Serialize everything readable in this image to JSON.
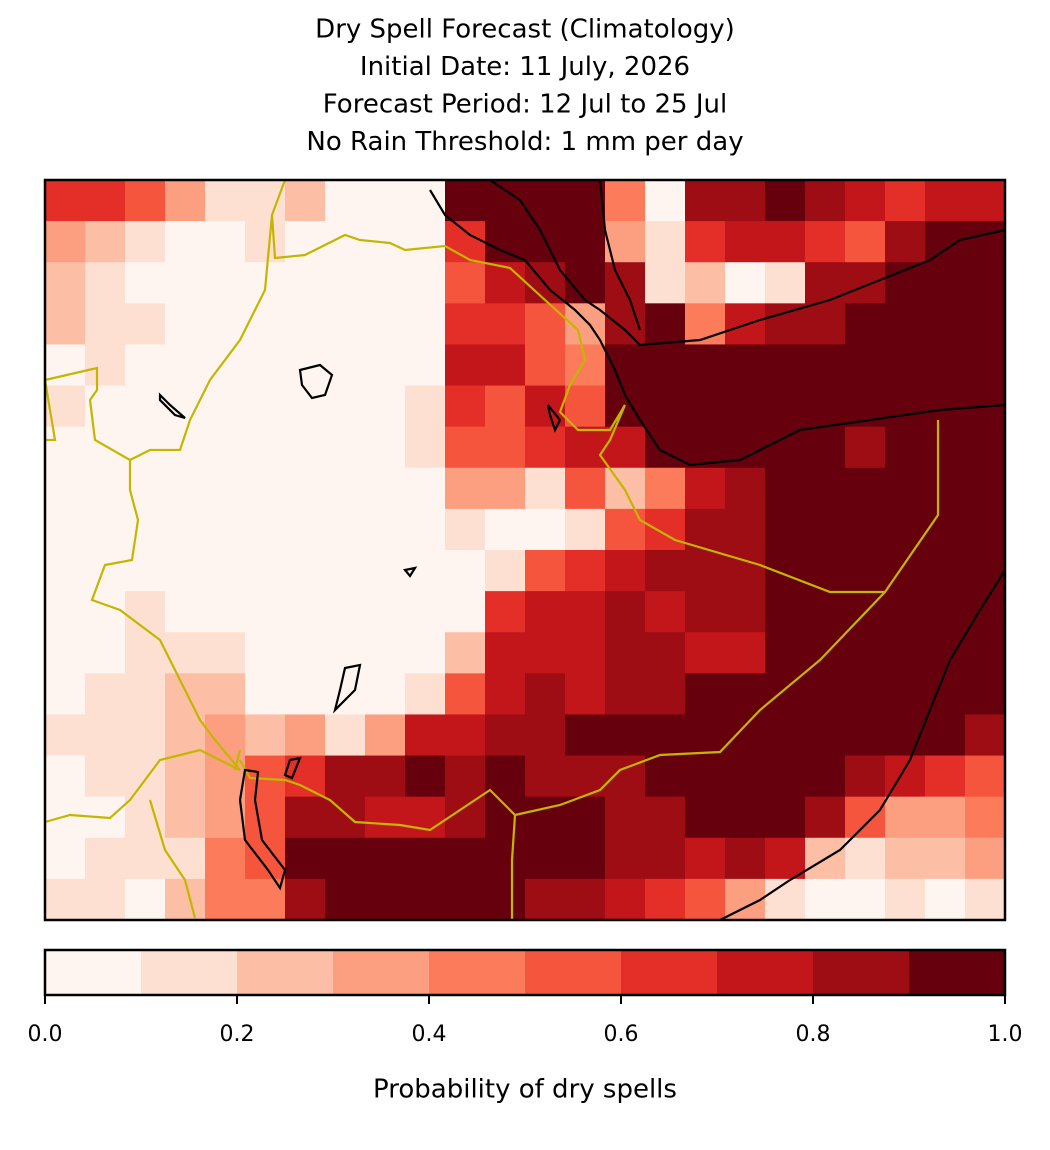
{
  "chart_data": {
    "type": "heatmap",
    "title": [
      "Dry Spell Forecast (Climatology)",
      "Initial Date: 11 July, 2026",
      "Forecast Period: 12 Jul to 25 Jul",
      "No Rain Threshold: 1 mm per day"
    ],
    "values": [
      [
        0.65,
        0.65,
        0.55,
        0.35,
        0.15,
        0.15,
        0.25,
        0.05,
        0.05,
        0.05,
        0.95,
        0.95,
        0.95,
        0.95,
        0.45,
        0.05,
        0.85,
        0.85,
        0.95,
        0.85,
        0.75,
        0.65,
        0.75,
        0.75
      ],
      [
        0.35,
        0.25,
        0.15,
        0.05,
        0.05,
        0.15,
        0.05,
        0.05,
        0.05,
        0.05,
        0.65,
        0.95,
        0.95,
        0.95,
        0.35,
        0.15,
        0.65,
        0.75,
        0.75,
        0.65,
        0.55,
        0.85,
        0.95,
        0.95
      ],
      [
        0.25,
        0.15,
        0.05,
        0.05,
        0.05,
        0.05,
        0.05,
        0.05,
        0.05,
        0.05,
        0.55,
        0.75,
        0.85,
        0.95,
        0.85,
        0.15,
        0.25,
        0.05,
        0.15,
        0.85,
        0.85,
        0.95,
        0.95,
        0.95
      ],
      [
        0.25,
        0.15,
        0.15,
        0.05,
        0.05,
        0.05,
        0.05,
        0.05,
        0.05,
        0.05,
        0.65,
        0.65,
        0.55,
        0.35,
        0.85,
        0.95,
        0.45,
        0.75,
        0.85,
        0.85,
        0.95,
        0.95,
        0.95,
        0.95
      ],
      [
        0.05,
        0.15,
        0.05,
        0.05,
        0.05,
        0.05,
        0.05,
        0.05,
        0.05,
        0.05,
        0.75,
        0.75,
        0.55,
        0.45,
        0.95,
        0.95,
        0.95,
        0.95,
        0.95,
        0.95,
        0.95,
        0.95,
        0.95,
        0.95
      ],
      [
        0.15,
        0.05,
        0.05,
        0.05,
        0.05,
        0.05,
        0.05,
        0.05,
        0.05,
        0.15,
        0.65,
        0.55,
        0.75,
        0.55,
        0.95,
        0.95,
        0.95,
        0.95,
        0.95,
        0.95,
        0.95,
        0.95,
        0.95,
        0.95
      ],
      [
        0.05,
        0.05,
        0.05,
        0.05,
        0.05,
        0.05,
        0.05,
        0.05,
        0.05,
        0.15,
        0.55,
        0.55,
        0.65,
        0.75,
        0.75,
        0.95,
        0.95,
        0.95,
        0.95,
        0.95,
        0.85,
        0.95,
        0.95,
        0.95
      ],
      [
        0.05,
        0.05,
        0.05,
        0.05,
        0.05,
        0.05,
        0.05,
        0.05,
        0.05,
        0.05,
        0.35,
        0.35,
        0.15,
        0.55,
        0.25,
        0.45,
        0.75,
        0.85,
        0.95,
        0.95,
        0.95,
        0.95,
        0.95,
        0.95
      ],
      [
        0.05,
        0.05,
        0.05,
        0.05,
        0.05,
        0.05,
        0.05,
        0.05,
        0.05,
        0.05,
        0.15,
        0.05,
        0.05,
        0.15,
        0.55,
        0.65,
        0.85,
        0.85,
        0.95,
        0.95,
        0.95,
        0.95,
        0.95,
        0.95
      ],
      [
        0.05,
        0.05,
        0.05,
        0.05,
        0.05,
        0.05,
        0.05,
        0.05,
        0.05,
        0.05,
        0.05,
        0.15,
        0.55,
        0.65,
        0.75,
        0.85,
        0.85,
        0.85,
        0.95,
        0.95,
        0.95,
        0.95,
        0.95,
        0.95
      ],
      [
        0.05,
        0.05,
        0.15,
        0.05,
        0.05,
        0.05,
        0.05,
        0.05,
        0.05,
        0.05,
        0.05,
        0.65,
        0.75,
        0.75,
        0.85,
        0.75,
        0.85,
        0.85,
        0.95,
        0.95,
        0.95,
        0.95,
        0.95,
        0.95
      ],
      [
        0.05,
        0.05,
        0.15,
        0.15,
        0.15,
        0.05,
        0.05,
        0.05,
        0.05,
        0.05,
        0.25,
        0.75,
        0.75,
        0.75,
        0.85,
        0.85,
        0.75,
        0.75,
        0.95,
        0.95,
        0.95,
        0.95,
        0.95,
        0.95
      ],
      [
        0.05,
        0.15,
        0.15,
        0.25,
        0.25,
        0.05,
        0.05,
        0.05,
        0.05,
        0.15,
        0.55,
        0.75,
        0.85,
        0.75,
        0.85,
        0.85,
        0.95,
        0.95,
        0.95,
        0.95,
        0.95,
        0.95,
        0.95,
        0.95
      ],
      [
        0.15,
        0.15,
        0.15,
        0.25,
        0.35,
        0.25,
        0.35,
        0.15,
        0.35,
        0.75,
        0.75,
        0.85,
        0.85,
        0.95,
        0.95,
        0.95,
        0.95,
        0.95,
        0.95,
        0.95,
        0.95,
        0.95,
        0.95,
        0.85
      ],
      [
        0.05,
        0.15,
        0.15,
        0.25,
        0.35,
        0.55,
        0.65,
        0.85,
        0.85,
        0.95,
        0.85,
        0.95,
        0.85,
        0.85,
        0.85,
        0.95,
        0.95,
        0.95,
        0.95,
        0.95,
        0.85,
        0.75,
        0.65,
        0.55
      ],
      [
        0.05,
        0.05,
        0.15,
        0.25,
        0.35,
        0.55,
        0.85,
        0.85,
        0.75,
        0.75,
        0.85,
        0.95,
        0.95,
        0.95,
        0.85,
        0.85,
        0.95,
        0.95,
        0.95,
        0.85,
        0.55,
        0.35,
        0.35,
        0.45
      ],
      [
        0.05,
        0.15,
        0.15,
        0.15,
        0.45,
        0.55,
        0.95,
        0.95,
        0.95,
        0.95,
        0.95,
        0.95,
        0.95,
        0.95,
        0.85,
        0.85,
        0.75,
        0.85,
        0.75,
        0.25,
        0.15,
        0.25,
        0.25,
        0.35
      ],
      [
        0.15,
        0.15,
        0.05,
        0.25,
        0.45,
        0.45,
        0.85,
        0.95,
        0.95,
        0.95,
        0.95,
        0.95,
        0.85,
        0.85,
        0.75,
        0.65,
        0.55,
        0.35,
        0.15,
        0.05,
        0.05,
        0.15,
        0.05,
        0.15
      ]
    ],
    "levels": [
      0,
      0.1,
      0.2,
      0.3,
      0.4,
      0.5,
      0.6,
      0.7,
      0.8,
      0.9,
      1
    ],
    "colors": [
      "#fff5f0",
      "#fee0d2",
      "#fcbea5",
      "#fc9f81",
      "#fb7b5b",
      "#f5553d",
      "#e32f27",
      "#c3161b",
      "#9e0d14",
      "#67000d"
    ],
    "clim": [
      0,
      1
    ],
    "cticks": [
      {
        "value": 0,
        "label": "0.0"
      },
      0.2,
      0.4,
      0.6,
      0.8,
      {
        "value": 1,
        "label": "1.0"
      }
    ],
    "colorbar_label": "Probability of dry spells"
  }
}
